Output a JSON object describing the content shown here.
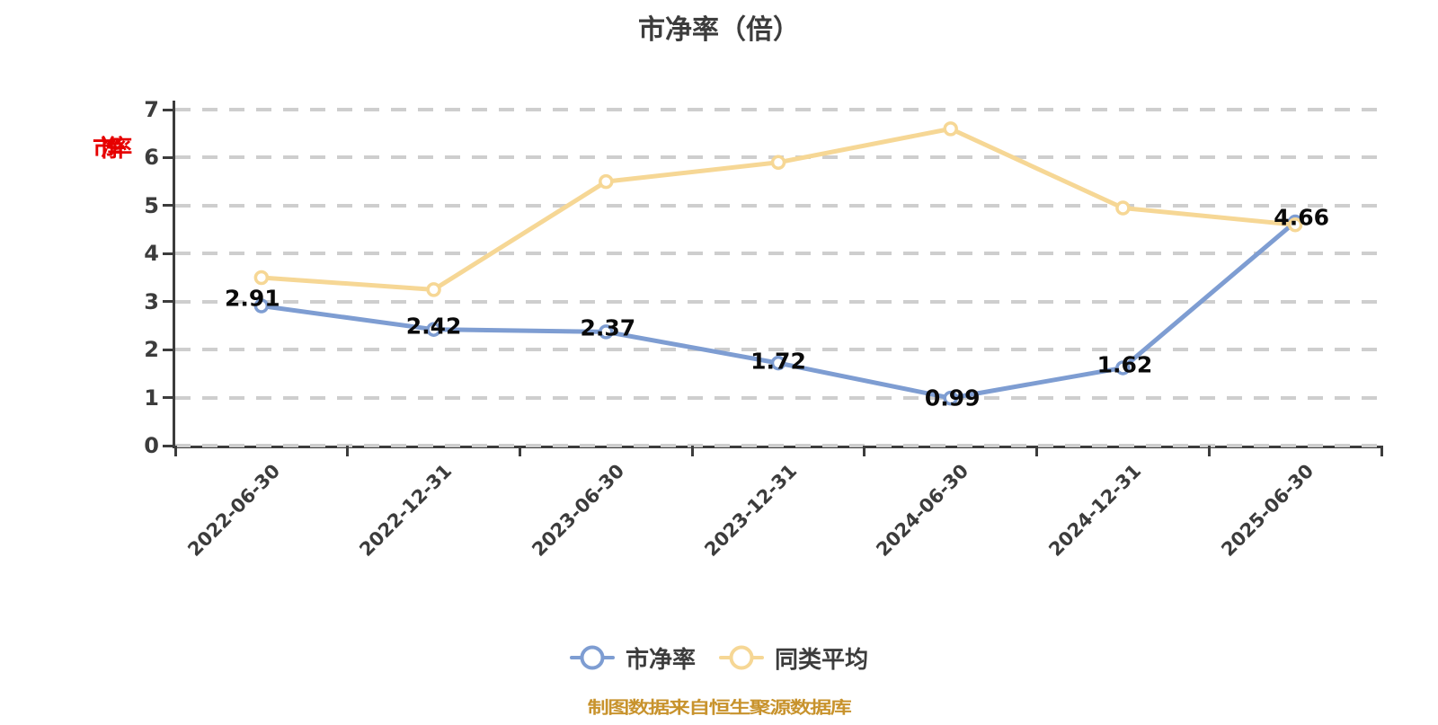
{
  "title": "市净率（倍）",
  "y_axis_name": "市净率",
  "footer": "制图数据来自恒生聚源数据库",
  "legend": {
    "items": [
      {
        "label": "市净率",
        "color": "#7E9DD2"
      },
      {
        "label": "同类平均",
        "color": "#F6D795"
      }
    ]
  },
  "chart_data": {
    "type": "line",
    "title": "市净率（倍）",
    "categories": [
      "2022-06-30",
      "2022-12-31",
      "2023-06-30",
      "2023-12-31",
      "2024-06-30",
      "2024-12-31",
      "2025-06-30"
    ],
    "series": [
      {
        "name": "市净率",
        "color": "#7E9DD2",
        "values": [
          2.91,
          2.42,
          2.37,
          1.72,
          0.99,
          1.62,
          4.66
        ],
        "data_labels": [
          "2.91",
          "2.42",
          "2.37",
          "1.72",
          "0.99",
          "1.62",
          "4.66"
        ]
      },
      {
        "name": "同类平均",
        "color": "#F6D795",
        "values": [
          3.5,
          3.25,
          5.5,
          5.9,
          6.6,
          4.95,
          4.6
        ],
        "data_labels": null
      }
    ],
    "ylim": [
      0,
      7
    ],
    "yticks": [
      0,
      1,
      2,
      3,
      4,
      5,
      6,
      7
    ],
    "grid": "horizontal-dashed",
    "x_label_rotation": 45,
    "legend_position": "bottom",
    "marker": "hollow-circle",
    "colors": {
      "grid_line": "#CECECE",
      "axis_line": "#3C3C3C",
      "tick_label": "#3C3C3C",
      "data_label": "#0A0A0A",
      "y_axis_name_red": "#E60000",
      "footer_orange": "#C8932D"
    }
  }
}
